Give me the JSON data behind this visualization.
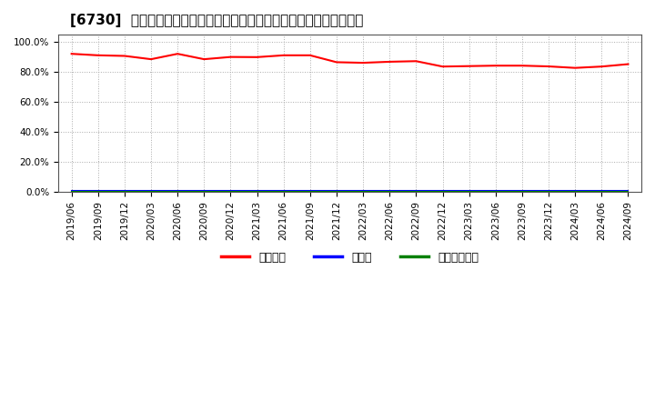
{
  "title": "[6730]  自己資本、のれん、繰延税金資産の総資産に対する比率の推移",
  "x_labels": [
    "2019/06",
    "2019/09",
    "2019/12",
    "2020/03",
    "2020/06",
    "2020/09",
    "2020/12",
    "2021/03",
    "2021/06",
    "2021/09",
    "2021/12",
    "2022/03",
    "2022/06",
    "2022/09",
    "2022/12",
    "2023/03",
    "2023/06",
    "2023/09",
    "2023/12",
    "2024/03",
    "2024/06",
    "2024/09"
  ],
  "equity_ratio": [
    0.922,
    0.912,
    0.908,
    0.886,
    0.922,
    0.886,
    0.901,
    0.9,
    0.912,
    0.912,
    0.866,
    0.862,
    0.869,
    0.873,
    0.837,
    0.84,
    0.843,
    0.843,
    0.838,
    0.828,
    0.837,
    0.853
  ],
  "goodwill_ratio": [
    0.005,
    0.005,
    0.005,
    0.005,
    0.005,
    0.005,
    0.005,
    0.005,
    0.005,
    0.005,
    0.005,
    0.005,
    0.005,
    0.005,
    0.005,
    0.005,
    0.005,
    0.005,
    0.005,
    0.005,
    0.005,
    0.005
  ],
  "deferred_tax_ratio": [
    0.0,
    0.0,
    0.0,
    0.0,
    0.0,
    0.0,
    0.0,
    0.0,
    0.0,
    0.0,
    0.0,
    0.0,
    0.0,
    0.0,
    0.0,
    0.0,
    0.0,
    0.0,
    0.0,
    0.0,
    0.0,
    0.0
  ],
  "equity_color": "#ff0000",
  "goodwill_color": "#0000ff",
  "deferred_tax_color": "#008000",
  "background_color": "#ffffff",
  "plot_bg_color": "#ffffff",
  "grid_color": "#aaaaaa",
  "ylim": [
    0.0,
    1.05
  ],
  "yticks": [
    0.0,
    0.2,
    0.4,
    0.6,
    0.8,
    1.0
  ],
  "ytick_labels": [
    "0.0%",
    "20.0%",
    "40.0%",
    "60.0%",
    "80.0%",
    "100.0%"
  ],
  "legend_labels": [
    "自己資本",
    "のれん",
    "繰延税金資産"
  ],
  "title_fontsize": 11,
  "tick_fontsize": 7.5,
  "legend_fontsize": 9
}
